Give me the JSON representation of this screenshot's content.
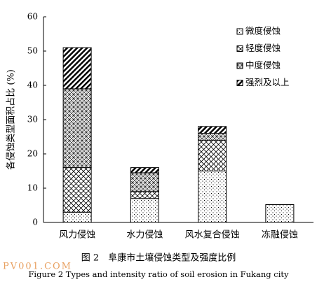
{
  "chart_data": {
    "type": "stacked_bar",
    "ylabel": "各侵蚀类型面积占比 (%)",
    "categories": [
      "风力侵蚀",
      "水力侵蚀",
      "风水复合侵蚀",
      "冻融侵蚀"
    ],
    "series": [
      {
        "name": "微度侵蚀",
        "values": [
          3,
          7,
          15,
          5.2
        ]
      },
      {
        "name": "轻度侵蚀",
        "values": [
          13,
          2,
          9,
          0
        ]
      },
      {
        "name": "中度侵蚀",
        "values": [
          23,
          5.5,
          2,
          0
        ]
      },
      {
        "name": "强烈及以上",
        "values": [
          12,
          1.5,
          2,
          0
        ]
      }
    ],
    "ylim": [
      0,
      60
    ],
    "yticks": [
      0,
      10,
      20,
      30,
      40,
      50,
      60
    ],
    "caption": "图 2　阜康市土壤侵蚀类型及强度比例",
    "caption_en": "Figure 2 Types and intensity ratio of soil erosion in Fukang city",
    "watermark": "PV001.COM"
  }
}
